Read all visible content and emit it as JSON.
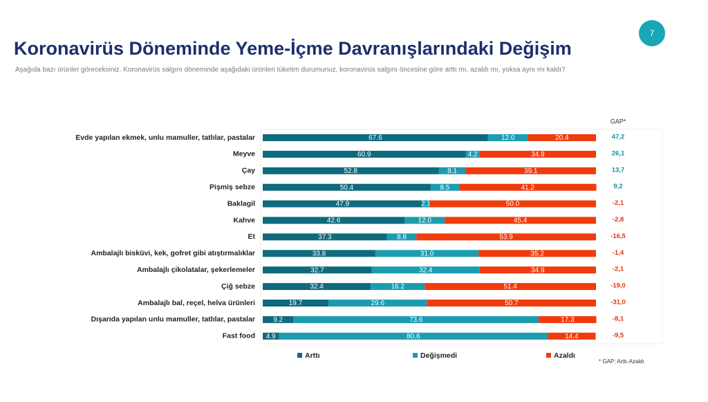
{
  "page_number": "7",
  "chart_data": {
    "type": "stacked-bar-horizontal",
    "title": "Koronavirüs Döneminde Yeme-İçme Davranışlarındaki Değişim",
    "subtitle": "Aşağıda bazı ürünler göreceksiniz. Koronavirüs salgını döneminde aşağıdaki ürünleri tüketim durumunuz, koronavirüs salgını öncesine göre arttı mı, azaldı mı, yoksa aynı mı kaldı?",
    "categories": [
      "Evde yapılan ekmek, unlu mamuller, tatlılar, pastalar",
      "Meyve",
      "Çay",
      "Pişmiş sebze",
      "Baklagil",
      "Kahve",
      "Et",
      "Ambalajlı bisküvi, kek, gofret gibi atıştırmalıklar",
      "Ambalajlı çikolatalar, şekerlemeler",
      "Çiğ sebze",
      "Ambalajlı bal, reçel, helva ürünleri",
      "Dışarıda yapılan unlu mamuller, tatlılar, pastalar",
      "Fast food"
    ],
    "xlim": [
      0,
      100
    ],
    "series": [
      {
        "name": "Arttı",
        "color": "#0f6a7d",
        "values": [
          67.6,
          60.9,
          52.8,
          50.4,
          47.9,
          42.6,
          37.3,
          33.8,
          32.7,
          32.4,
          19.7,
          9.2,
          4.9
        ],
        "value_labels": [
          "67.6",
          "60.9",
          "52.8",
          "50.4",
          "47.9",
          "42.6",
          "37.3",
          "33.8",
          "32.7",
          "32.4",
          "19.7",
          "9.2",
          "4.9"
        ]
      },
      {
        "name": "Değişmedi",
        "color": "#1b9cb1",
        "values": [
          12.0,
          4.2,
          8.1,
          8.5,
          2.1,
          12.0,
          8.8,
          31.0,
          32.4,
          16.2,
          29.6,
          73.6,
          80.6
        ],
        "value_labels": [
          "12.0",
          "4.2",
          "8.1",
          "8.5",
          "2.1",
          "12.0",
          "8.8",
          "31.0",
          "32.4",
          "16.2",
          "29.6",
          "73.6",
          "80.6"
        ]
      },
      {
        "name": "Azaldı",
        "color": "#f03b0d",
        "values": [
          20.4,
          34.9,
          39.1,
          41.2,
          50.0,
          45.4,
          53.9,
          35.2,
          34.9,
          51.4,
          50.7,
          17.3,
          14.4
        ],
        "value_labels": [
          "20.4",
          "34.9",
          "39.1",
          "41.2",
          "50.0",
          "45.4",
          "53.9",
          "35.2",
          "34.9",
          "51.4",
          "50.7",
          "17.3",
          "14.4"
        ]
      }
    ],
    "gap": {
      "title": "GAP*",
      "positive_color": "#1b8ea3",
      "negative_color": "#e8340c",
      "values": [
        47.2,
        26.1,
        13.7,
        9.2,
        -2.1,
        -2.8,
        -16.5,
        -1.4,
        -2.1,
        -19.0,
        -31.0,
        -8.1,
        -9.5
      ],
      "value_labels": [
        "47,2",
        "26,1",
        "13,7",
        "9,2",
        "-2,1",
        "-2,8",
        "-16,5",
        "-1,4",
        "-2,1",
        "-19,0",
        "-31,0",
        "-8,1",
        "-9,5"
      ]
    },
    "footnote": "* GAP: Arttı-Azaldı"
  }
}
